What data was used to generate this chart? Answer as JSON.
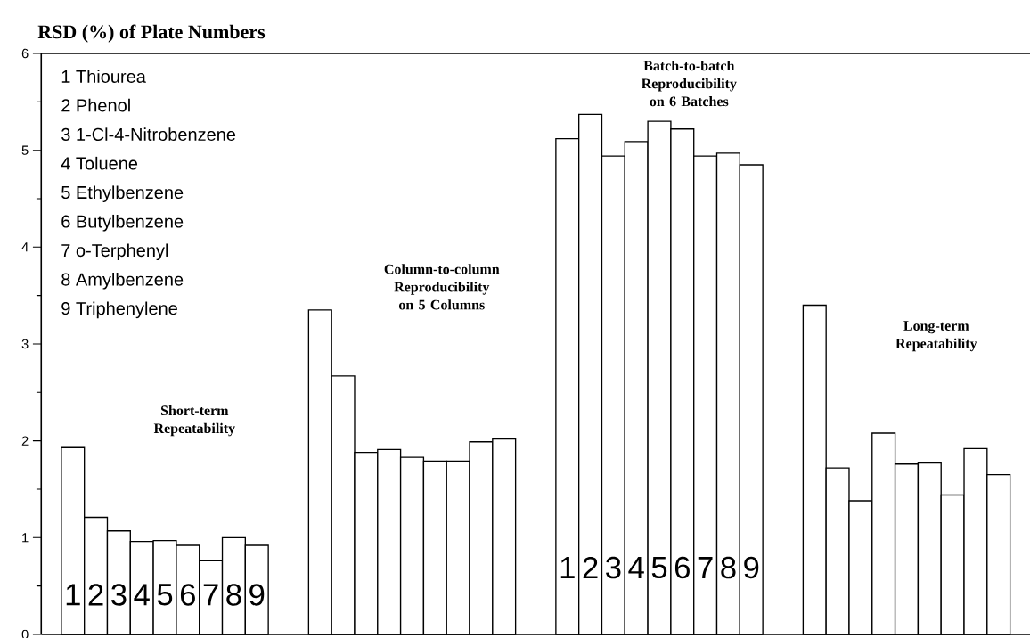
{
  "chart_data": {
    "type": "bar",
    "title": "RSD (%) of Plate Numbers",
    "categories": [
      "Short-term Repeatability",
      "Column-to-column Reproducibility on 5 Columns",
      "Batch-to-batch Reproducibility on 6 Batches",
      "Long-term Repeatability"
    ],
    "series": [
      {
        "color": "#ffffff",
        "values": [
          1.93,
          3.35,
          5.12,
          3.4
        ]
      },
      {
        "color": "#ffffff",
        "values": [
          1.21,
          2.67,
          5.37,
          1.72
        ]
      },
      {
        "color": "#ffffff",
        "values": [
          1.07,
          1.88,
          4.94,
          1.38
        ]
      },
      {
        "color": "#ffffff",
        "values": [
          0.96,
          1.91,
          5.09,
          2.08
        ]
      },
      {
        "color": "#ffffff",
        "values": [
          0.97,
          1.83,
          5.3,
          1.76
        ]
      },
      {
        "color": "#ffffff",
        "values": [
          0.92,
          1.79,
          5.22,
          1.77
        ]
      },
      {
        "color": "#ffffff",
        "values": [
          0.76,
          1.79,
          4.94,
          1.44
        ]
      },
      {
        "color": "#ffffff",
        "values": [
          1.0,
          1.99,
          4.97,
          1.92
        ]
      },
      {
        "color": "#ffffff",
        "values": [
          0.92,
          2.02,
          4.85,
          1.65
        ]
      }
    ],
    "ylim": [
      0,
      6
    ],
    "yticks": [
      0,
      1,
      2,
      3,
      4,
      5,
      6
    ],
    "tick_labels": "y",
    "grid": false,
    "annotations": [
      "1 Thiourea",
      "2 Phenol",
      "3 1-Cl-4-Nitrobenzene",
      "4 Toluene",
      "5 Ethylbenzene",
      "6 Butylbenzene",
      "7 o-Terphenyl",
      "8 Amylbenzene",
      "9 Triphenylene",
      "1",
      "2",
      "3",
      "4",
      "5",
      "6",
      "7",
      "8",
      "9",
      "1",
      "2",
      "3",
      "4",
      "5",
      "6",
      "7",
      "8",
      "9"
    ]
  }
}
